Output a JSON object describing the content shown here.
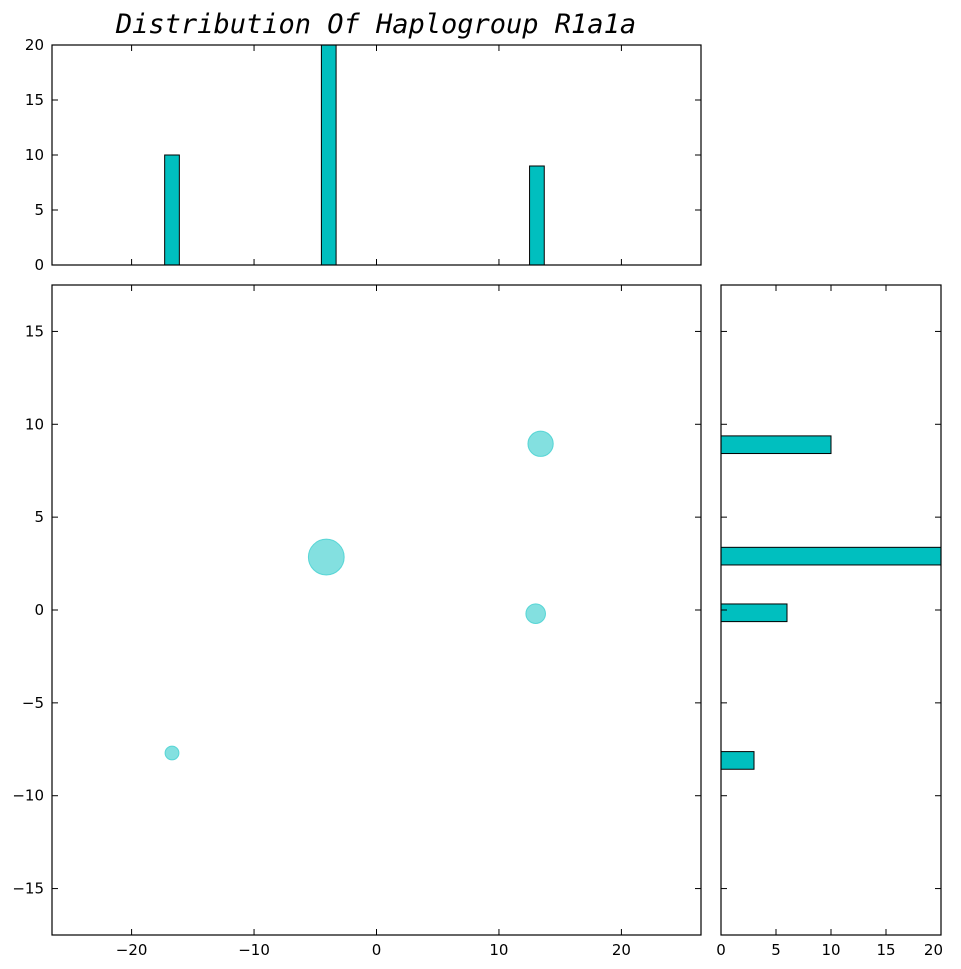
{
  "chart_data": {
    "type": "scatter",
    "title": "Distribution Of Haplogroup R1a1a",
    "xlabel": "",
    "ylabel": "",
    "xlim": [
      -26.5,
      26.5
    ],
    "ylim": [
      -17.5,
      17.5
    ],
    "xticks": [
      -20,
      -10,
      0,
      10,
      20
    ],
    "yticks": [
      -15,
      -10,
      -5,
      0,
      5,
      10,
      15
    ],
    "points": [
      {
        "x": -16.7,
        "y": -7.7,
        "size": 3
      },
      {
        "x": -4.1,
        "y": 2.85,
        "size": 20
      },
      {
        "x": 13.0,
        "y": -0.2,
        "size": 6
      },
      {
        "x": 13.4,
        "y": 8.95,
        "size": 10
      }
    ],
    "marginal_x_histogram": {
      "bin_width": 1.2,
      "ylim": [
        0,
        20
      ],
      "yticks": [
        0,
        5,
        10,
        15,
        20
      ],
      "bars": [
        {
          "x": -16.7,
          "count": 10
        },
        {
          "x": -3.9,
          "count": 20
        },
        {
          "x": 13.1,
          "count": 9
        }
      ]
    },
    "marginal_y_histogram": {
      "bin_height": 0.95,
      "xlim": [
        0,
        20
      ],
      "xticks": [
        0,
        5,
        10,
        15,
        20
      ],
      "bars": [
        {
          "y": -8.1,
          "count": 3
        },
        {
          "y": -0.15,
          "count": 6
        },
        {
          "y": 2.9,
          "count": 20
        },
        {
          "y": 8.9,
          "count": 10
        }
      ]
    },
    "colors": {
      "scatter_fill": "#40d0d0",
      "bar_fill": "#00bfbf",
      "axis": "#000000"
    },
    "grid": false,
    "legend": "none"
  }
}
